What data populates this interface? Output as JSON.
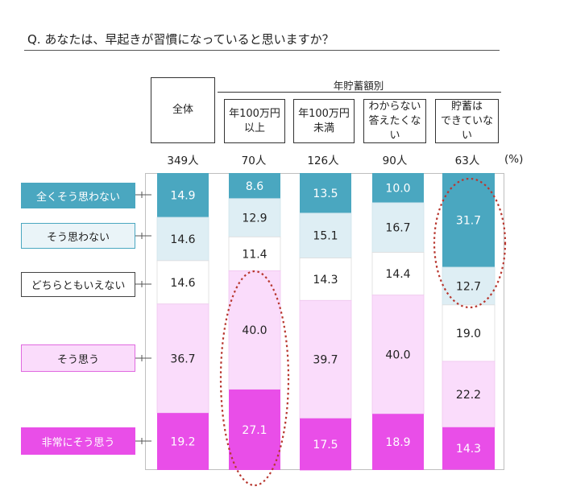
{
  "question": "Q.  あなたは、早起きが習慣になっていると思いますか？",
  "group_header": "年貯蓄額別",
  "unit_label": "(%)",
  "colors": {
    "全くそう思わない": "#4aa7c0",
    "そう思わない": "#deeef4",
    "どちらともいえない": "#ffffff",
    "そう思う": "#fadcfb",
    "非常にそう思う": "#e94ee8",
    "highlight": "#b8372f"
  },
  "chart_data": {
    "type": "bar",
    "stacked": true,
    "percent": true,
    "unit": "(%)",
    "categories": [
      "全体",
      "年100万円\n以上",
      "年100万円\n未満",
      "わからない\n答えたくない",
      "貯蓄は\nできていない"
    ],
    "n_labels": [
      "349人",
      "70人",
      "126人",
      "90人",
      "63人"
    ],
    "series": [
      {
        "name": "全くそう思わない",
        "values": [
          14.9,
          8.6,
          13.5,
          10.0,
          31.7
        ]
      },
      {
        "name": "そう思わない",
        "values": [
          14.6,
          12.9,
          15.1,
          16.7,
          12.7
        ]
      },
      {
        "name": "どちらともいえない",
        "values": [
          14.6,
          11.4,
          14.3,
          14.4,
          19.0
        ]
      },
      {
        "name": "そう思う",
        "values": [
          36.7,
          40.0,
          39.7,
          40.0,
          22.2
        ]
      },
      {
        "name": "非常にそう思う",
        "values": [
          19.2,
          27.1,
          17.5,
          18.9,
          14.3
        ]
      }
    ],
    "ylim": [
      0,
      100
    ],
    "grid": false,
    "legend": "left"
  }
}
